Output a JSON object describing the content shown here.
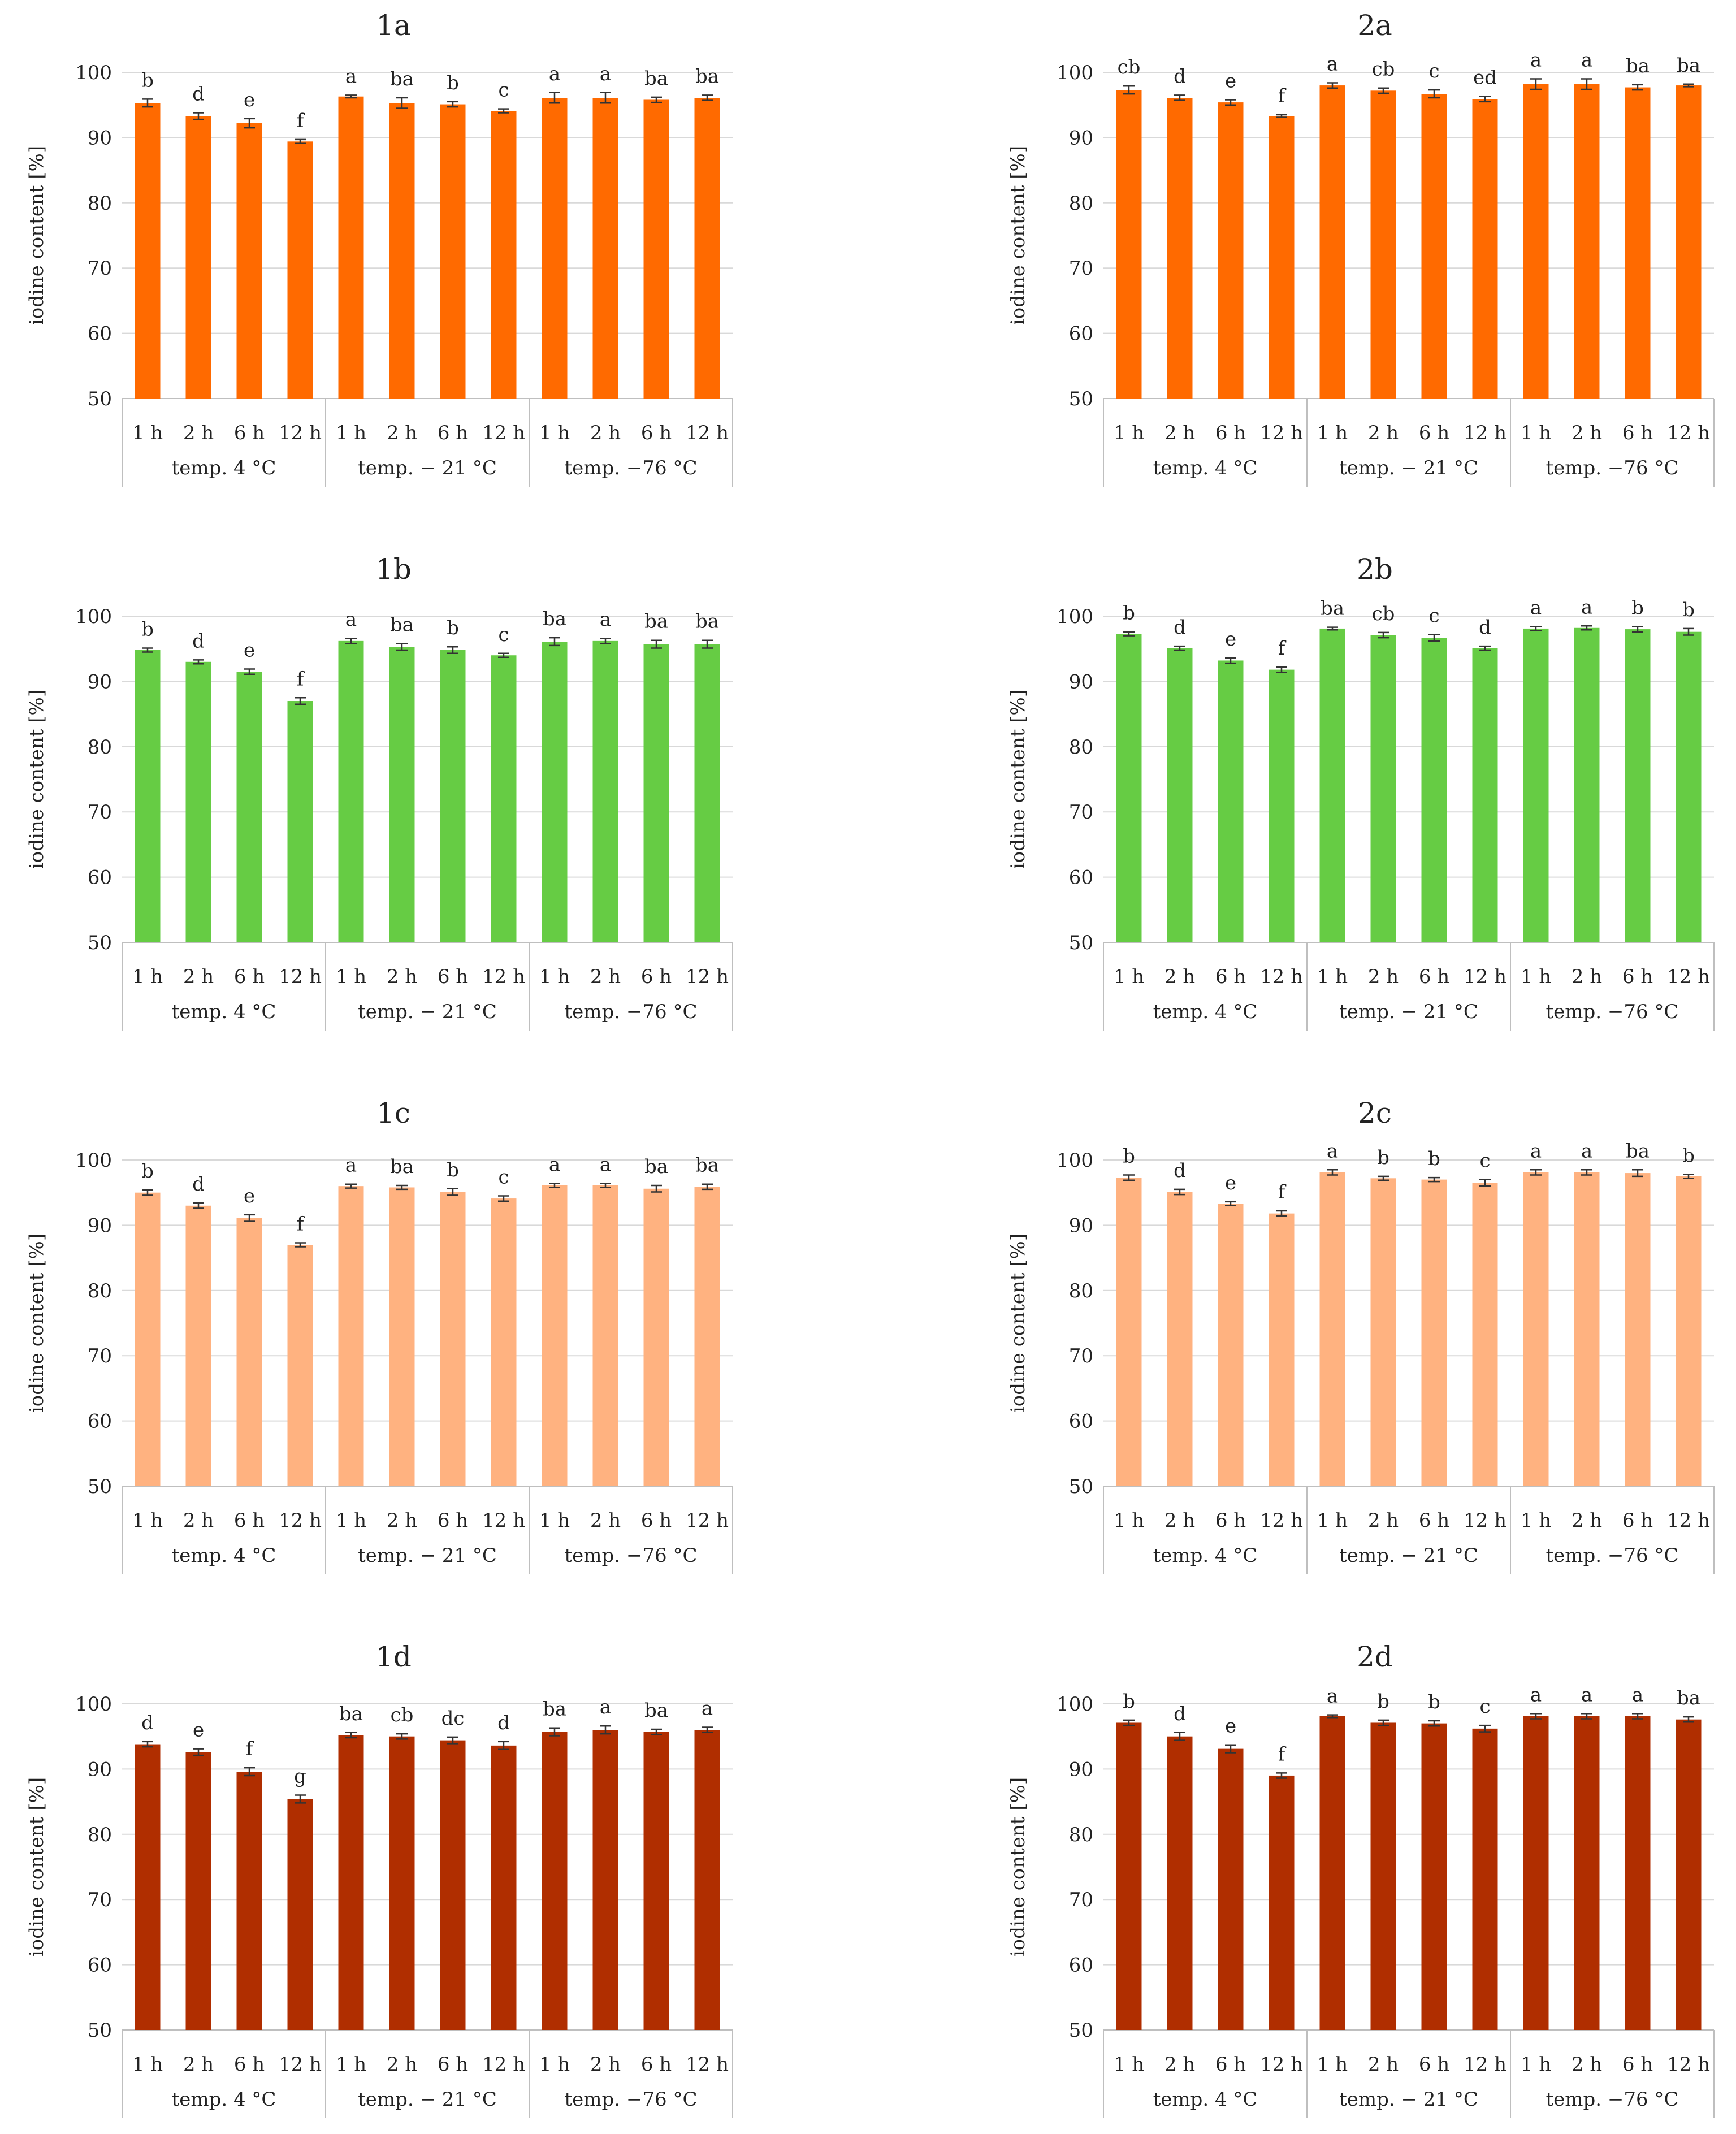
{
  "figure": {
    "y_axis_label": "iodine content [%]",
    "x_time_labels": [
      "1 h",
      "2 h",
      "6 h",
      "12 h"
    ],
    "x_group_labels": [
      "temp. 4 °C",
      "temp. − 21 °C",
      "temp. −76 °C"
    ]
  },
  "chart_data": [
    {
      "type": "bar",
      "title": "1a",
      "color": "#ff6a00",
      "ylim": [
        50,
        100
      ],
      "yticks": [
        50,
        60,
        70,
        80,
        90,
        100
      ],
      "categories": [
        "1 h",
        "2 h",
        "6 h",
        "12 h",
        "1 h",
        "2 h",
        "6 h",
        "12 h",
        "1 h",
        "2 h",
        "6 h",
        "12 h"
      ],
      "groups": [
        "temp. 4 °C",
        "temp. − 21 °C",
        "temp. −76 °C"
      ],
      "values": [
        95.3,
        93.3,
        92.2,
        89.4,
        96.3,
        95.3,
        95.1,
        94.1,
        96.1,
        96.1,
        95.8,
        96.1
      ],
      "errors": [
        0.6,
        0.5,
        0.7,
        0.3,
        0.2,
        0.8,
        0.4,
        0.3,
        0.8,
        0.8,
        0.4,
        0.4
      ],
      "labels": [
        "b",
        "d",
        "e",
        "f",
        "a",
        "ba",
        "b",
        "c",
        "a",
        "a",
        "ba",
        "ba"
      ],
      "ylabel": "iodine content [%]"
    },
    {
      "type": "bar",
      "title": "2a",
      "color": "#ff6a00",
      "ylim": [
        50,
        100
      ],
      "yticks": [
        50,
        60,
        70,
        80,
        90,
        100
      ],
      "categories": [
        "1 h",
        "2 h",
        "6 h",
        "12 h",
        "1 h",
        "2 h",
        "6 h",
        "12 h",
        "1 h",
        "2 h",
        "6 h",
        "12 h"
      ],
      "groups": [
        "temp. 4 °C",
        "temp. − 21 °C",
        "temp. −76 °C"
      ],
      "values": [
        97.3,
        96.1,
        95.4,
        93.3,
        98.0,
        97.2,
        96.7,
        95.9,
        98.2,
        98.2,
        97.7,
        98.0
      ],
      "errors": [
        0.6,
        0.4,
        0.4,
        0.2,
        0.4,
        0.4,
        0.6,
        0.4,
        0.8,
        0.8,
        0.4,
        0.2
      ],
      "labels": [
        "cb",
        "d",
        "e",
        "f",
        "a",
        "cb",
        "c",
        "ed",
        "a",
        "a",
        "ba",
        "ba"
      ],
      "ylabel": "iodine content [%]"
    },
    {
      "type": "bar",
      "title": "1b",
      "color": "#66cc44",
      "ylim": [
        50,
        100
      ],
      "yticks": [
        50,
        60,
        70,
        80,
        90,
        100
      ],
      "categories": [
        "1 h",
        "2 h",
        "6 h",
        "12 h",
        "1 h",
        "2 h",
        "6 h",
        "12 h",
        "1 h",
        "2 h",
        "6 h",
        "12 h"
      ],
      "groups": [
        "temp. 4 °C",
        "temp. − 21 °C",
        "temp. −76 °C"
      ],
      "values": [
        94.8,
        93.0,
        91.5,
        87.0,
        96.2,
        95.3,
        94.8,
        94.0,
        96.1,
        96.2,
        95.7,
        95.7
      ],
      "errors": [
        0.3,
        0.3,
        0.4,
        0.5,
        0.4,
        0.5,
        0.5,
        0.3,
        0.6,
        0.4,
        0.6,
        0.6
      ],
      "labels": [
        "b",
        "d",
        "e",
        "f",
        "a",
        "ba",
        "b",
        "c",
        "ba",
        "a",
        "ba",
        "ba"
      ],
      "ylabel": "iodine content [%]"
    },
    {
      "type": "bar",
      "title": "2b",
      "color": "#66cc44",
      "ylim": [
        50,
        100
      ],
      "yticks": [
        50,
        60,
        70,
        80,
        90,
        100
      ],
      "categories": [
        "1 h",
        "2 h",
        "6 h",
        "12 h",
        "1 h",
        "2 h",
        "6 h",
        "12 h",
        "1 h",
        "2 h",
        "6 h",
        "12 h"
      ],
      "groups": [
        "temp. 4 °C",
        "temp. − 21 °C",
        "temp. −76 °C"
      ],
      "values": [
        97.3,
        95.1,
        93.2,
        91.8,
        98.1,
        97.1,
        96.7,
        95.1,
        98.1,
        98.2,
        98.0,
        97.6
      ],
      "errors": [
        0.3,
        0.3,
        0.4,
        0.4,
        0.2,
        0.4,
        0.5,
        0.3,
        0.3,
        0.3,
        0.4,
        0.5
      ],
      "labels": [
        "b",
        "d",
        "e",
        "f",
        "ba",
        "cb",
        "c",
        "d",
        "a",
        "a",
        "b",
        "b"
      ],
      "ylabel": "iodine content [%]"
    },
    {
      "type": "bar",
      "title": "1c",
      "color": "#ffb280",
      "ylim": [
        50,
        100
      ],
      "yticks": [
        50,
        60,
        70,
        80,
        90,
        100
      ],
      "categories": [
        "1 h",
        "2 h",
        "6 h",
        "12 h",
        "1 h",
        "2 h",
        "6 h",
        "12 h",
        "1 h",
        "2 h",
        "6 h",
        "12 h"
      ],
      "groups": [
        "temp. 4 °C",
        "temp. − 21 °C",
        "temp. −76 °C"
      ],
      "values": [
        95.0,
        93.0,
        91.1,
        87.0,
        96.0,
        95.8,
        95.1,
        94.1,
        96.1,
        96.1,
        95.6,
        95.9
      ],
      "errors": [
        0.4,
        0.4,
        0.5,
        0.3,
        0.3,
        0.3,
        0.5,
        0.4,
        0.3,
        0.3,
        0.5,
        0.4
      ],
      "labels": [
        "b",
        "d",
        "e",
        "f",
        "a",
        "ba",
        "b",
        "c",
        "a",
        "a",
        "ba",
        "ba"
      ],
      "ylabel": "iodine content [%]"
    },
    {
      "type": "bar",
      "title": "2c",
      "color": "#ffb280",
      "ylim": [
        50,
        100
      ],
      "yticks": [
        50,
        60,
        70,
        80,
        90,
        100
      ],
      "categories": [
        "1 h",
        "2 h",
        "6 h",
        "12 h",
        "1 h",
        "2 h",
        "6 h",
        "12 h",
        "1 h",
        "2 h",
        "6 h",
        "12 h"
      ],
      "groups": [
        "temp. 4 °C",
        "temp. − 21 °C",
        "temp. −76 °C"
      ],
      "values": [
        97.3,
        95.1,
        93.3,
        91.8,
        98.1,
        97.2,
        97.0,
        96.5,
        98.1,
        98.1,
        98.0,
        97.5
      ],
      "errors": [
        0.4,
        0.4,
        0.3,
        0.4,
        0.4,
        0.3,
        0.3,
        0.5,
        0.4,
        0.4,
        0.5,
        0.3
      ],
      "labels": [
        "b",
        "d",
        "e",
        "f",
        "a",
        "b",
        "b",
        "c",
        "a",
        "a",
        "ba",
        "b"
      ],
      "ylabel": "iodine content [%]"
    },
    {
      "type": "bar",
      "title": "1d",
      "color": "#b02e00",
      "ylim": [
        50,
        100
      ],
      "yticks": [
        50,
        60,
        70,
        80,
        90,
        100
      ],
      "categories": [
        "1 h",
        "2 h",
        "6 h",
        "12 h",
        "1 h",
        "2 h",
        "6 h",
        "12 h",
        "1 h",
        "2 h",
        "6 h",
        "12 h"
      ],
      "groups": [
        "temp. 4 °C",
        "temp. − 21 °C",
        "temp. −76 °C"
      ],
      "values": [
        93.8,
        92.6,
        89.6,
        85.4,
        95.2,
        95.0,
        94.4,
        93.6,
        95.7,
        96.0,
        95.7,
        96.0
      ],
      "errors": [
        0.4,
        0.5,
        0.6,
        0.6,
        0.4,
        0.4,
        0.5,
        0.6,
        0.6,
        0.6,
        0.4,
        0.4
      ],
      "labels": [
        "d",
        "e",
        "f",
        "g",
        "ba",
        "cb",
        "dc",
        "d",
        "ba",
        "a",
        "ba",
        "a"
      ],
      "ylabel": "iodine content [%]"
    },
    {
      "type": "bar",
      "title": "2d",
      "color": "#b02e00",
      "ylim": [
        50,
        100
      ],
      "yticks": [
        50,
        60,
        70,
        80,
        90,
        100
      ],
      "categories": [
        "1 h",
        "2 h",
        "6 h",
        "12 h",
        "1 h",
        "2 h",
        "6 h",
        "12 h",
        "1 h",
        "2 h",
        "6 h",
        "12 h"
      ],
      "groups": [
        "temp. 4 °C",
        "temp. − 21 °C",
        "temp. −76 °C"
      ],
      "values": [
        97.1,
        95.0,
        93.1,
        89.0,
        98.1,
        97.1,
        97.0,
        96.2,
        98.1,
        98.1,
        98.1,
        97.6
      ],
      "errors": [
        0.4,
        0.6,
        0.6,
        0.4,
        0.2,
        0.4,
        0.4,
        0.5,
        0.4,
        0.4,
        0.4,
        0.4
      ],
      "labels": [
        "b",
        "d",
        "e",
        "f",
        "a",
        "b",
        "b",
        "c",
        "a",
        "a",
        "a",
        "ba"
      ],
      "ylabel": "iodine content [%]"
    }
  ]
}
